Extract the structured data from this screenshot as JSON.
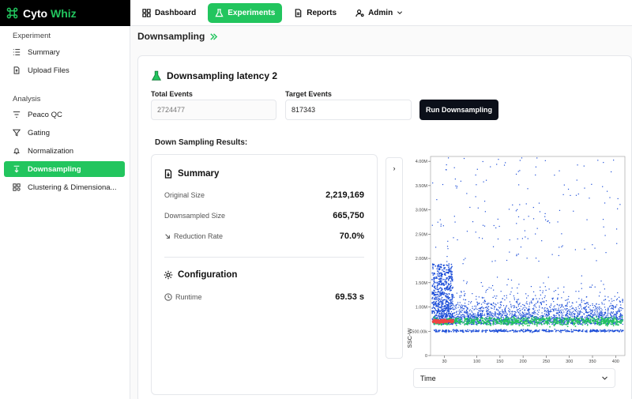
{
  "brand": {
    "name_a": "Cyto",
    "name_b": "Whiz",
    "accent": "#22c55e"
  },
  "topnav": {
    "items": [
      {
        "label": "Dashboard",
        "icon": "dashboard-icon"
      },
      {
        "label": "Experiments",
        "icon": "flask-icon",
        "active": true
      },
      {
        "label": "Reports",
        "icon": "document-icon"
      },
      {
        "label": "Admin",
        "icon": "user-gear-icon"
      }
    ]
  },
  "sidebar": {
    "section_experiment": "Experiment",
    "section_analysis": "Analysis",
    "items": [
      {
        "label": "Summary",
        "icon": "list-icon"
      },
      {
        "label": "Upload Files",
        "icon": "file-icon"
      },
      {
        "label": "Peaco QC",
        "icon": "filter-lines-icon"
      },
      {
        "label": "Gating",
        "icon": "funnel-icon"
      },
      {
        "label": "Normalization",
        "icon": "bell-icon"
      },
      {
        "label": "Downsampling",
        "icon": "arrow-down-icon",
        "active": true
      },
      {
        "label": "Clustering & Dimensiona...",
        "icon": "grid-icon"
      }
    ]
  },
  "main": {
    "page_title": "Downsampling",
    "card_title": "Downsampling latency 2",
    "total_events_label": "Total Events",
    "total_events_value": "2724477",
    "target_events_label": "Target Events",
    "target_events_value": "817343",
    "run_button": "Run Downsampling",
    "results_title": "Down Sampling Results:",
    "summary": {
      "title": "Summary",
      "original_size_label": "Original Size",
      "original_size_value": "2,219,169",
      "downsampled_size_label": "Downsampled Size",
      "downsampled_size_value": "665,750",
      "reduction_rate_label": "Reduction Rate",
      "reduction_rate_value": "70.0%"
    },
    "configuration": {
      "title": "Configuration",
      "runtime_label": "Runtime",
      "runtime_value": "69.53 s"
    },
    "toggle_label": "›",
    "x_axis_select": "Time"
  },
  "chart_data": {
    "type": "scatter",
    "title": "",
    "xlabel": "Time",
    "ylabel": "SSC-W",
    "xlim": [
      0,
      420
    ],
    "ylim": [
      0,
      4100000
    ],
    "x_ticks": [
      30,
      100,
      150,
      200,
      250,
      300,
      350,
      400
    ],
    "x_tick_labels": [
      "30",
      "100",
      "150",
      "200",
      "250",
      "300",
      "350",
      "400"
    ],
    "y_ticks": [
      0,
      500000,
      1000000,
      1500000,
      2000000,
      2500000,
      3000000,
      3500000,
      4000000
    ],
    "y_tick_labels": [
      "0",
      "500.00k",
      "1.00M",
      "1.50M",
      "2.00M",
      "2.50M",
      "3.00M",
      "3.50M",
      "4.00M"
    ],
    "density_note": "dense blue event cloud between 0.6M and 1.9M, hot band near 0.7M",
    "colors": {
      "low": "#1d4ed8",
      "mid": "#22c55e",
      "high": "#ef4444"
    }
  }
}
